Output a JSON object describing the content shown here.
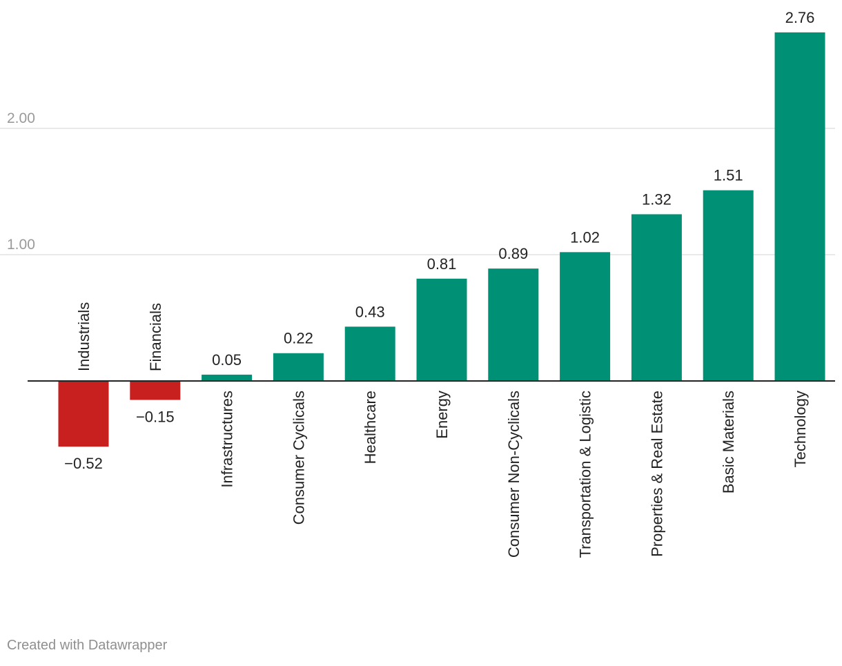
{
  "chart_data": {
    "type": "bar",
    "categories": [
      "Industrials",
      "Financials",
      "Infrastructures",
      "Consumer Cyclicals",
      "Healthcare",
      "Energy",
      "Consumer Non-Cyclicals",
      "Transportation & Logistic",
      "Properties & Real Estate",
      "Basic Materials",
      "Technology"
    ],
    "values": [
      -0.52,
      -0.15,
      0.05,
      0.22,
      0.43,
      0.81,
      0.89,
      1.02,
      1.32,
      1.51,
      2.76
    ],
    "value_labels": [
      "−0.52",
      "−0.15",
      "0.05",
      "0.22",
      "0.43",
      "0.81",
      "0.89",
      "1.02",
      "1.32",
      "1.51",
      "2.76"
    ],
    "y_ticks": [
      {
        "value": 1,
        "label": "1.00"
      },
      {
        "value": 2,
        "label": "2.00"
      }
    ],
    "ylim": [
      -0.52,
      2.76
    ],
    "grid": true,
    "colors": {
      "positive": "#009076",
      "negative": "#c81f1f",
      "grid": "#e2e2e2",
      "axis": "#222222",
      "tick_text": "#9a9a9a",
      "label_text": "#222222"
    }
  },
  "footer": {
    "credit": "Created with Datawrapper"
  }
}
